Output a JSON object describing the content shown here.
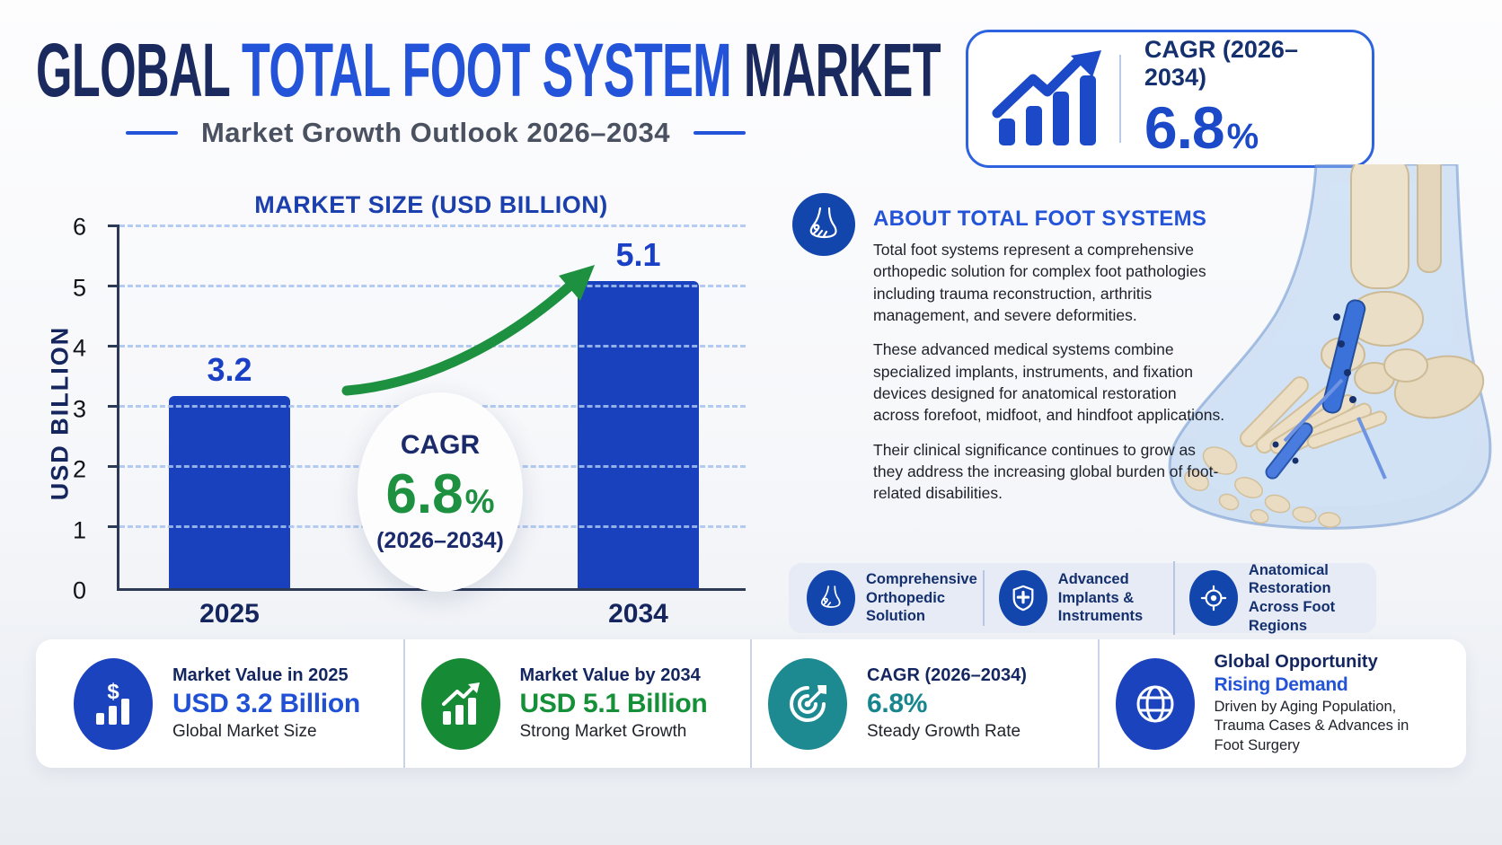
{
  "page": {
    "title_part1": "GLOBAL ",
    "title_part2": "TOTAL FOOT SYSTEM",
    "title_part3": " MARKET",
    "subtitle": "Market Growth Outlook 2026–2034"
  },
  "cagr_box": {
    "label": "CAGR (2026–2034)",
    "value": "6.8",
    "percent": "%"
  },
  "chart_data": {
    "type": "bar",
    "title": "MARKET SIZE (USD BILLION)",
    "ylabel": "USD BILLION",
    "categories": [
      "2025",
      "2034"
    ],
    "values": [
      3.2,
      5.1
    ],
    "value_labels": [
      "3.2",
      "5.1"
    ],
    "ylim": [
      0,
      6
    ],
    "yticks": [
      0,
      1,
      2,
      3,
      4,
      5,
      6
    ],
    "grid": "horizontal dashed",
    "bar_color": "#1a41bd",
    "arrow_color": "#1d9140",
    "annotation": {
      "label": "CAGR",
      "value": "6.8",
      "percent": "%",
      "period": "(2026–2034)"
    }
  },
  "about": {
    "heading": "ABOUT TOTAL FOOT SYSTEMS",
    "paragraphs": [
      "Total foot systems represent a comprehensive orthopedic solution for complex foot pathologies including trauma reconstruction, arthritis management, and severe deformities.",
      "These advanced medical systems combine specialized implants, instruments, and fixation devices designed for anatomical restoration across forefoot, midfoot, and hindfoot applications.",
      "Their clinical significance continues to grow as they address the increasing global burden of foot-related disabilities."
    ],
    "badges": [
      {
        "icon": "foot-icon",
        "label": "Comprehensive Orthopedic Solution"
      },
      {
        "icon": "shield-plus-icon",
        "label": "Advanced Implants & Instruments"
      },
      {
        "icon": "target-icon",
        "label": "Anatomical Restoration Across Foot Regions"
      }
    ]
  },
  "stats": [
    {
      "icon": "dollar-bars-icon",
      "icon_color": "#1b43bd",
      "title": "Market Value in 2025",
      "value": "USD 3.2 Billion",
      "value_color": "#2050d5",
      "caption": "Global Market Size"
    },
    {
      "icon": "growth-bars-icon",
      "icon_color": "#168a35",
      "title": "Market Value by 2034",
      "value": "USD 5.1 Billion",
      "value_color": "#169038",
      "caption": "Strong Market Growth"
    },
    {
      "icon": "dart-target-icon",
      "icon_color": "#1d8a92",
      "title": "CAGR (2026–2034)",
      "value": "6.8%",
      "value_color": "#17858d",
      "caption": "Steady Growth Rate"
    },
    {
      "icon": "globe-icon",
      "icon_color": "#1b43bd",
      "title": "Global Opportunity",
      "value": "Rising Demand",
      "value_color": "#2353d9",
      "caption": "Driven by Aging Population, Trauma Cases & Advances in Foot Surgery"
    }
  ],
  "colors": {
    "title_navy": "#1a2a5e",
    "accent_blue": "#2353d9",
    "bar_blue": "#1a41bd",
    "green": "#1d9140",
    "teal": "#1d8a92",
    "icon_blue": "#1346ad",
    "strip_bg": "#e6ebf5",
    "grid_blue": "#a8c4f0"
  }
}
